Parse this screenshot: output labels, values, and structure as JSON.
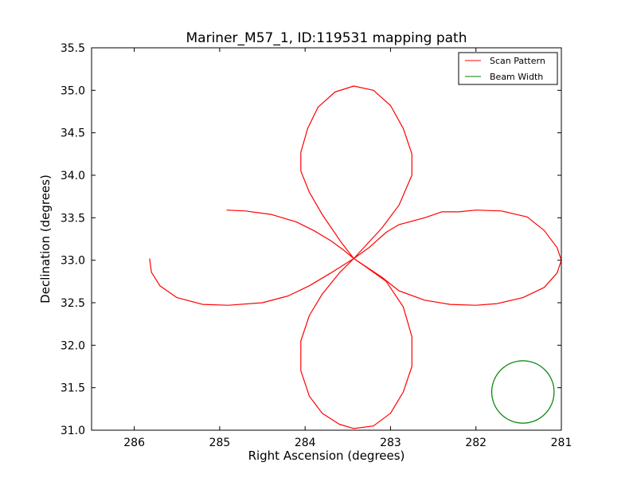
{
  "chart_data": {
    "type": "line",
    "title": "Mariner_M57_1, ID:119531 mapping path",
    "xlabel": "Right Ascension (degrees)",
    "ylabel": "Declination (degrees)",
    "xlim": [
      286.5,
      281.0
    ],
    "ylim": [
      31.0,
      35.5
    ],
    "x_inverted": true,
    "grid": false,
    "legend_position": "top-right",
    "xticks": [
      {
        "value": 286,
        "label": "286"
      },
      {
        "value": 285,
        "label": "285"
      },
      {
        "value": 284,
        "label": "284"
      },
      {
        "value": 283,
        "label": "283"
      },
      {
        "value": 282,
        "label": "282"
      },
      {
        "value": 281,
        "label": "281"
      }
    ],
    "yticks": [
      {
        "value": 31.0,
        "label": "31.0"
      },
      {
        "value": 31.5,
        "label": "31.5"
      },
      {
        "value": 32.0,
        "label": "32.0"
      },
      {
        "value": 32.5,
        "label": "32.5"
      },
      {
        "value": 33.0,
        "label": "33.0"
      },
      {
        "value": 33.5,
        "label": "33.5"
      },
      {
        "value": 34.0,
        "label": "34.0"
      },
      {
        "value": 34.5,
        "label": "34.5"
      },
      {
        "value": 35.0,
        "label": "35.0"
      },
      {
        "value": 35.5,
        "label": "35.5"
      }
    ],
    "series": [
      {
        "name": "Scan Pattern",
        "color": "#ff0000",
        "points": [
          [
            284.92,
            33.59
          ],
          [
            284.7,
            33.58
          ],
          [
            284.4,
            33.54
          ],
          [
            284.1,
            33.45
          ],
          [
            283.9,
            33.35
          ],
          [
            283.7,
            33.23
          ],
          [
            283.55,
            33.12
          ],
          [
            283.43,
            33.02
          ],
          [
            283.25,
            33.15
          ],
          [
            283.05,
            33.33
          ],
          [
            282.9,
            33.42
          ],
          [
            282.6,
            33.5
          ],
          [
            282.4,
            33.57
          ],
          [
            282.2,
            33.57
          ],
          [
            282.0,
            33.59
          ],
          [
            281.7,
            33.58
          ],
          [
            281.4,
            33.51
          ],
          [
            281.2,
            33.35
          ],
          [
            281.05,
            33.15
          ],
          [
            281.0,
            33.0
          ],
          [
            281.05,
            32.85
          ],
          [
            281.2,
            32.68
          ],
          [
            281.45,
            32.56
          ],
          [
            281.75,
            32.49
          ],
          [
            282.0,
            32.47
          ],
          [
            282.3,
            32.48
          ],
          [
            282.6,
            32.53
          ],
          [
            282.9,
            32.64
          ],
          [
            283.1,
            32.8
          ],
          [
            283.43,
            33.02
          ],
          [
            283.57,
            33.2
          ],
          [
            283.8,
            33.54
          ],
          [
            283.95,
            33.8
          ],
          [
            284.05,
            34.05
          ],
          [
            284.05,
            34.27
          ],
          [
            283.97,
            34.55
          ],
          [
            283.85,
            34.8
          ],
          [
            283.65,
            34.98
          ],
          [
            283.43,
            35.05
          ],
          [
            283.2,
            35.0
          ],
          [
            283.0,
            34.82
          ],
          [
            282.85,
            34.55
          ],
          [
            282.75,
            34.25
          ],
          [
            282.75,
            34.0
          ],
          [
            282.9,
            33.65
          ],
          [
            283.1,
            33.38
          ],
          [
            283.43,
            33.02
          ],
          [
            283.6,
            32.85
          ],
          [
            283.8,
            32.6
          ],
          [
            283.95,
            32.35
          ],
          [
            284.05,
            32.05
          ],
          [
            284.05,
            31.7
          ],
          [
            283.95,
            31.4
          ],
          [
            283.8,
            31.2
          ],
          [
            283.6,
            31.07
          ],
          [
            283.43,
            31.02
          ],
          [
            283.2,
            31.05
          ],
          [
            283.0,
            31.2
          ],
          [
            282.85,
            31.45
          ],
          [
            282.75,
            31.75
          ],
          [
            282.75,
            32.1
          ],
          [
            282.85,
            32.45
          ],
          [
            283.05,
            32.75
          ],
          [
            283.3,
            32.93
          ],
          [
            283.43,
            33.02
          ],
          [
            283.7,
            32.85
          ],
          [
            283.95,
            32.7
          ],
          [
            284.2,
            32.58
          ],
          [
            284.5,
            32.5
          ],
          [
            284.9,
            32.47
          ],
          [
            285.2,
            32.48
          ],
          [
            285.5,
            32.56
          ],
          [
            285.7,
            32.7
          ],
          [
            285.8,
            32.86
          ],
          [
            285.82,
            33.02
          ]
        ]
      },
      {
        "name": "Beam Width",
        "color": "#008000",
        "shape": "circle",
        "center": [
          281.45,
          31.45
        ],
        "radius_deg": 0.365
      }
    ]
  }
}
